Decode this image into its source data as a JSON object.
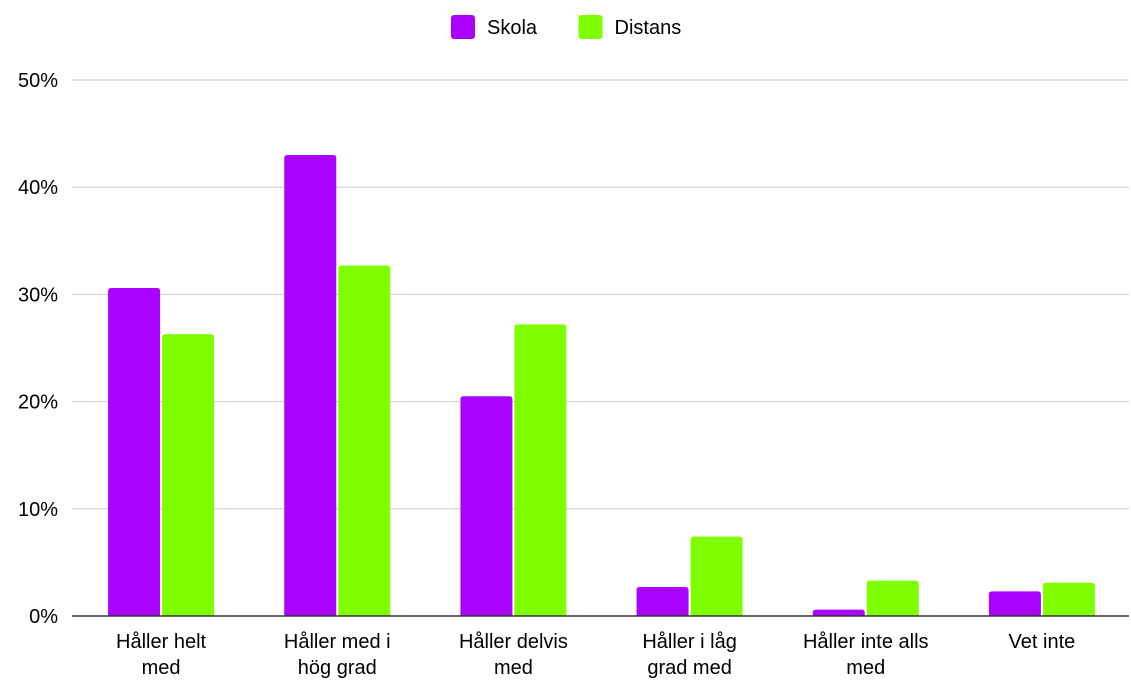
{
  "chart_data": {
    "type": "bar",
    "categories": [
      [
        "Håller helt",
        "med"
      ],
      [
        "Håller med i",
        "hög grad"
      ],
      [
        "Håller delvis",
        "med"
      ],
      [
        "Håller i låg",
        "grad med"
      ],
      [
        "Håller inte alls",
        "med"
      ],
      [
        "Vet inte"
      ]
    ],
    "series": [
      {
        "name": "Skola",
        "color": "#aa00ff",
        "values": [
          30.6,
          43.0,
          20.5,
          2.7,
          0.6,
          2.3
        ]
      },
      {
        "name": "Distans",
        "color": "#7fff00",
        "values": [
          26.3,
          32.7,
          27.2,
          7.4,
          3.3,
          3.1
        ]
      }
    ],
    "ylim": [
      0,
      50
    ],
    "yticks": [
      "0%",
      "10%",
      "20%",
      "30%",
      "40%",
      "50%"
    ],
    "ytick_values": [
      0,
      10,
      20,
      30,
      40,
      50
    ],
    "grid": true,
    "legend_position": "top-center",
    "title": "",
    "xlabel": "",
    "ylabel": ""
  }
}
